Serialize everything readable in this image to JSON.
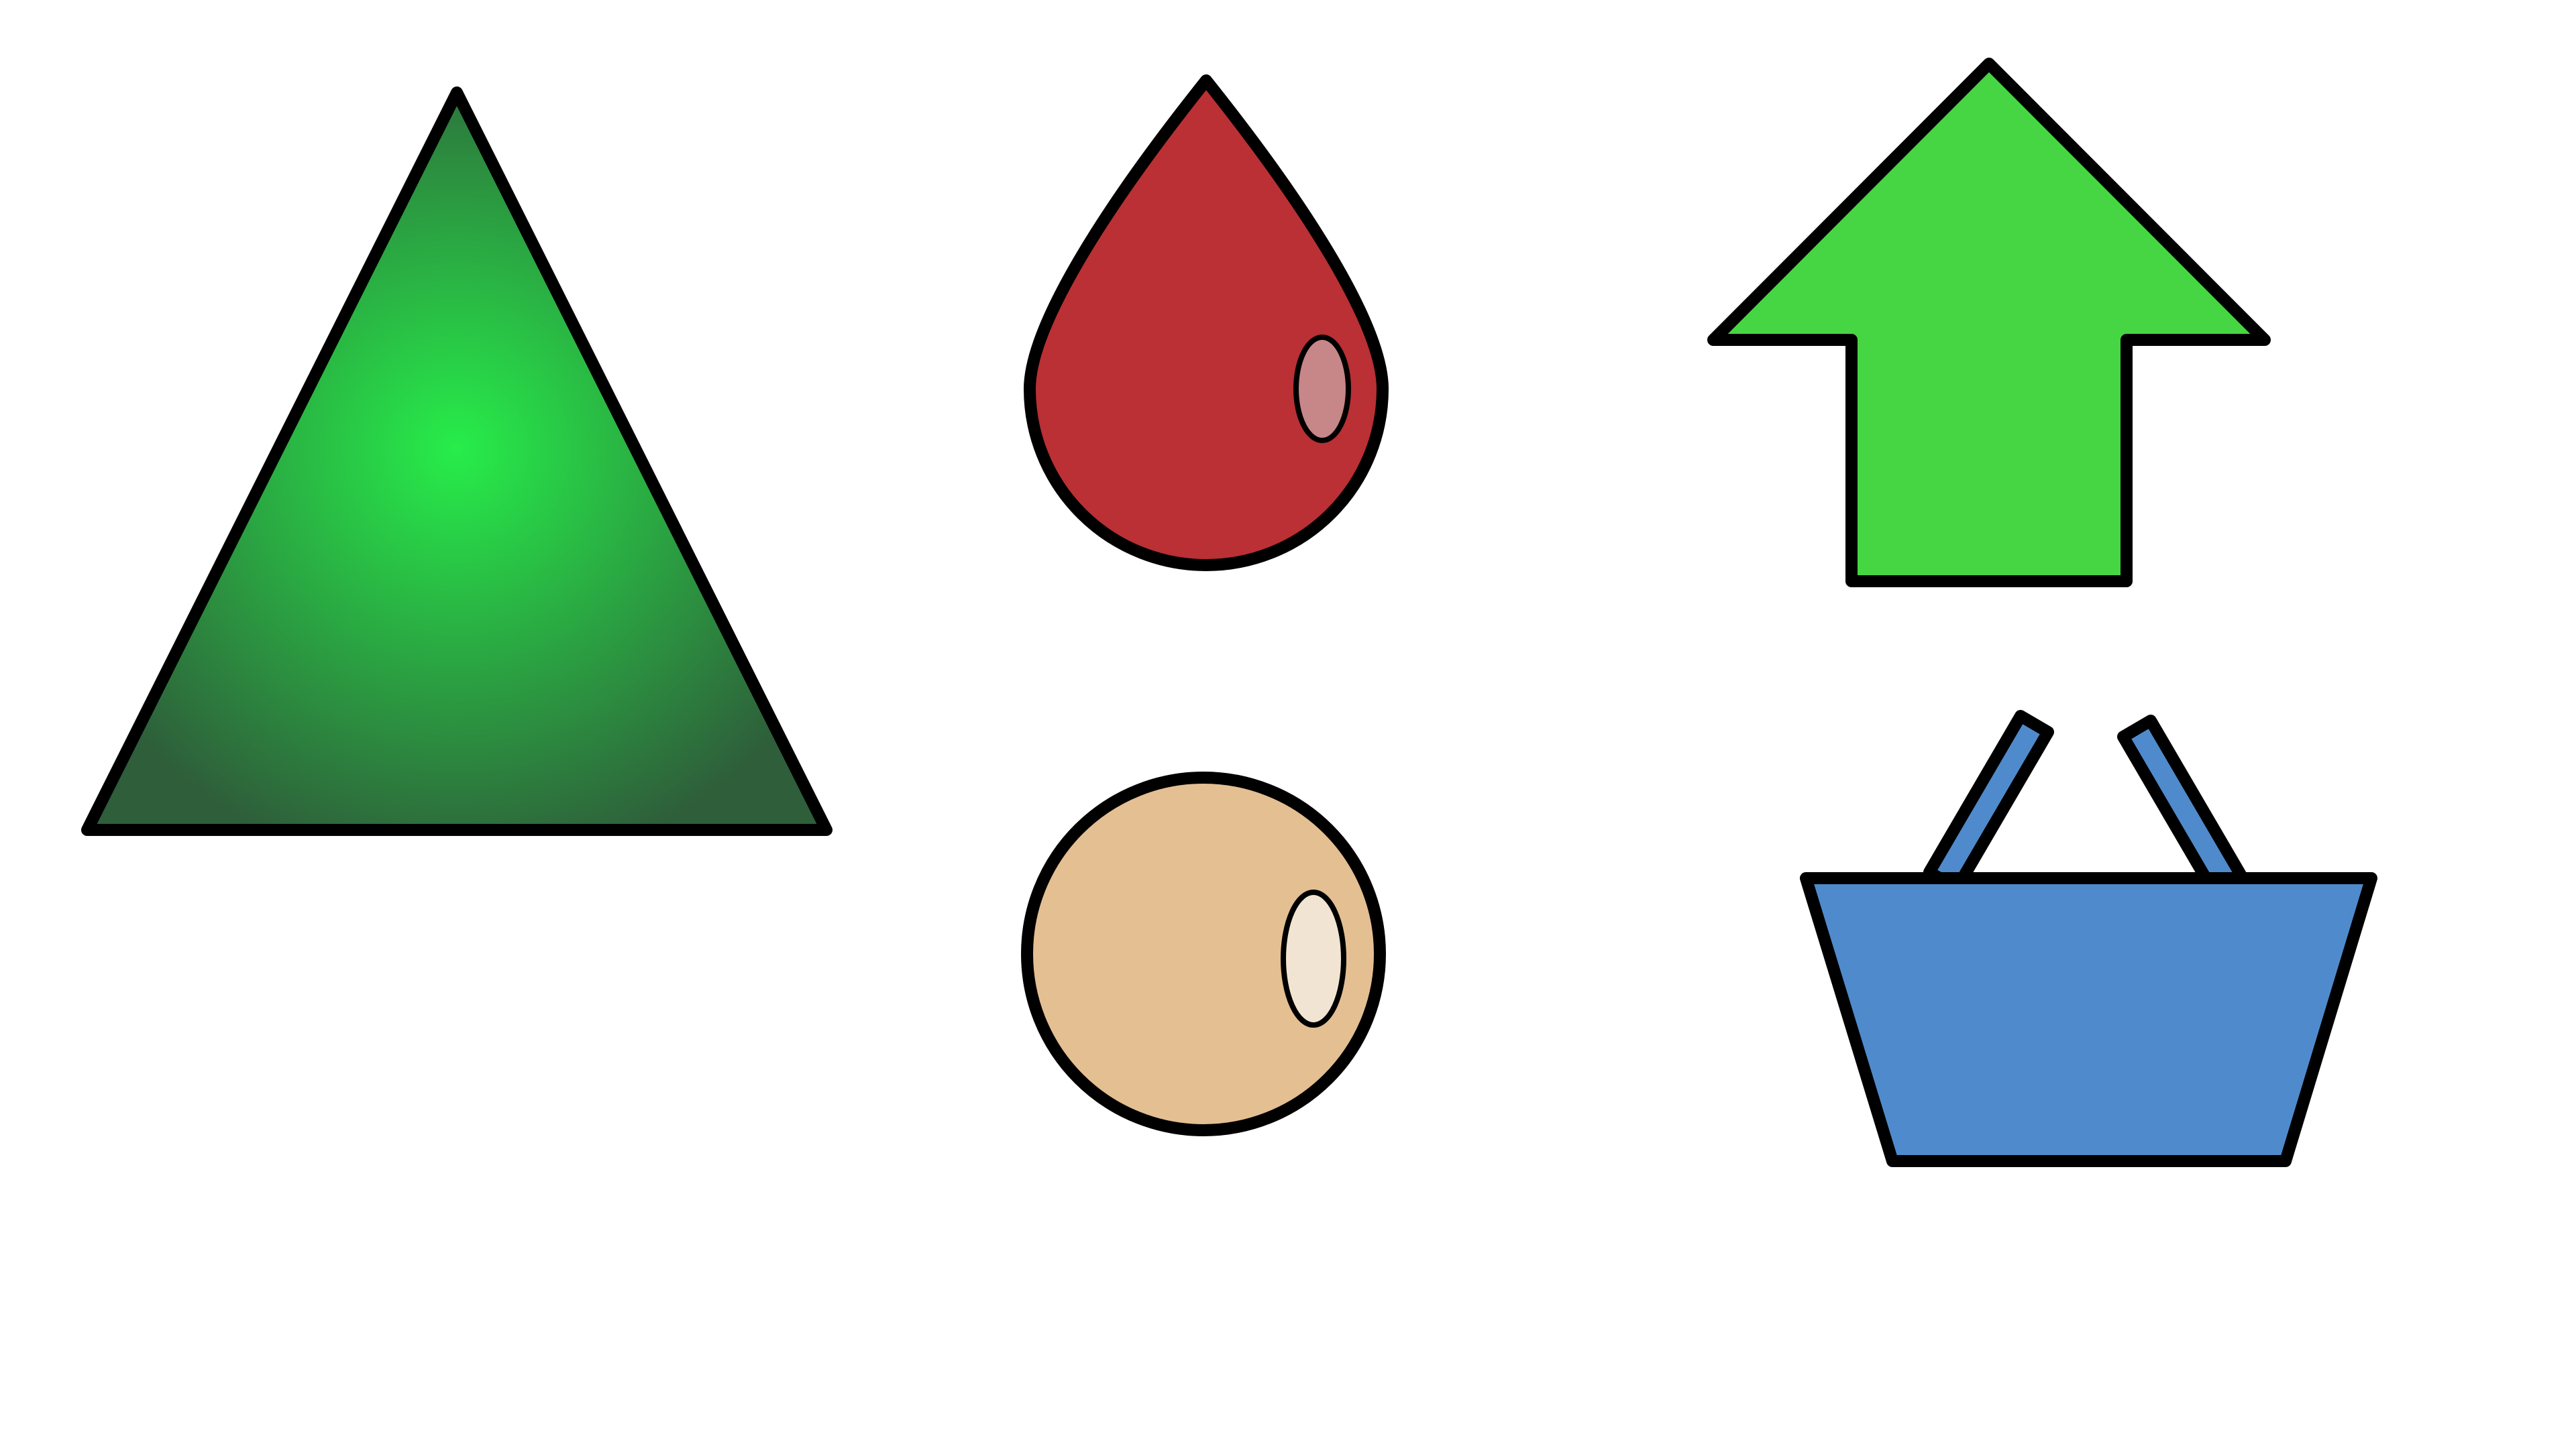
{
  "shapes": {
    "triangle": {
      "icon": "triangle-icon",
      "gradient_center_color": "#27ED4A",
      "gradient_edge_color": "#2E5E3A"
    },
    "drop": {
      "icon": "water-drop-icon",
      "fill": "#BA3034",
      "highlight_fill": "#C78688"
    },
    "arrow": {
      "icon": "arrow-up-icon",
      "fill": "#46D643"
    },
    "ball": {
      "icon": "circle-icon",
      "fill": "#E4BF92",
      "highlight_fill": "#F2E4D3"
    },
    "basket": {
      "icon": "basket-icon",
      "fill": "#4F8BCC"
    }
  },
  "colors": {
    "outline": "#000000",
    "background": "#FFFFFF"
  }
}
